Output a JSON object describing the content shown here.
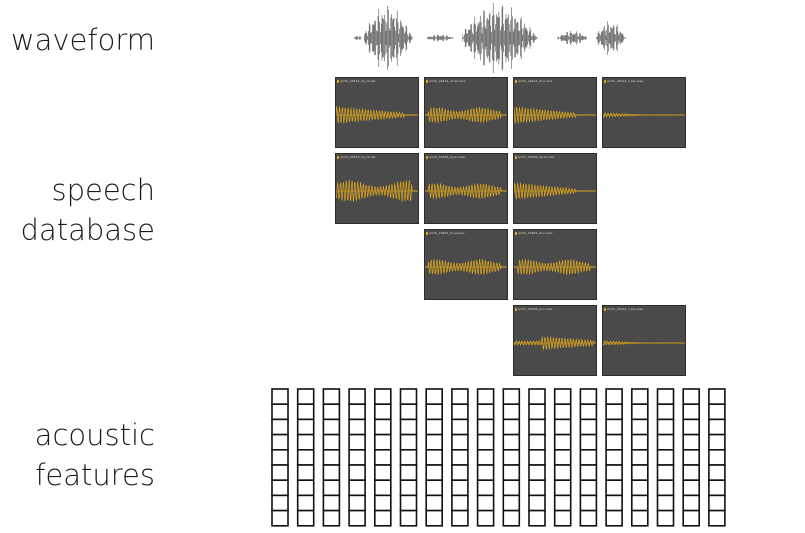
{
  "labels": {
    "waveform": "waveform",
    "speech_database_line1": "speech",
    "speech_database_line2": "database",
    "acoustic_features_line1": "acoustic",
    "acoustic_features_line2": "features"
  },
  "colors": {
    "tile_background": "#4a4a4a",
    "signal": "#e0a81c",
    "waveform": "#555555",
    "grid": "#111111"
  },
  "speech_database": {
    "tiles": [
      {
        "row": 0,
        "col": 0,
        "title": "arctic_b0434_hp_recast",
        "envelope": "burst"
      },
      {
        "row": 0,
        "col": 1,
        "title": "arctic_a0412_uh-ax-axis",
        "envelope": "periodic"
      },
      {
        "row": 0,
        "col": 2,
        "title": "arctic_a0422_ax-n-axis",
        "envelope": "decay"
      },
      {
        "row": 0,
        "col": 3,
        "title": "arctic_a0412_n-pau.wav",
        "envelope": "faint"
      },
      {
        "row": 1,
        "col": 0,
        "title": "arctic_b0434_hp_recast",
        "envelope": "strong"
      },
      {
        "row": 1,
        "col": 1,
        "title": "arctic_b0436_ax-ax.wav",
        "envelope": "periodic"
      },
      {
        "row": 1,
        "col": 2,
        "title": "arctic_b0436_hp-ax.wav",
        "envelope": "decay"
      },
      {
        "row": 2,
        "col": 1,
        "title": "arctic_b0462_m-ax.wav",
        "envelope": "periodic"
      },
      {
        "row": 2,
        "col": 2,
        "title": "arctic_b0462_ax-n.wav",
        "envelope": "periodic"
      },
      {
        "row": 3,
        "col": 2,
        "title": "arctic_b0438_ax-n.wav",
        "envelope": "rise"
      },
      {
        "row": 3,
        "col": 3,
        "title": "arctic_a0412_n-pau.wav",
        "envelope": "faint"
      }
    ]
  },
  "acoustic_features": {
    "columns": 18,
    "rows": 9
  }
}
